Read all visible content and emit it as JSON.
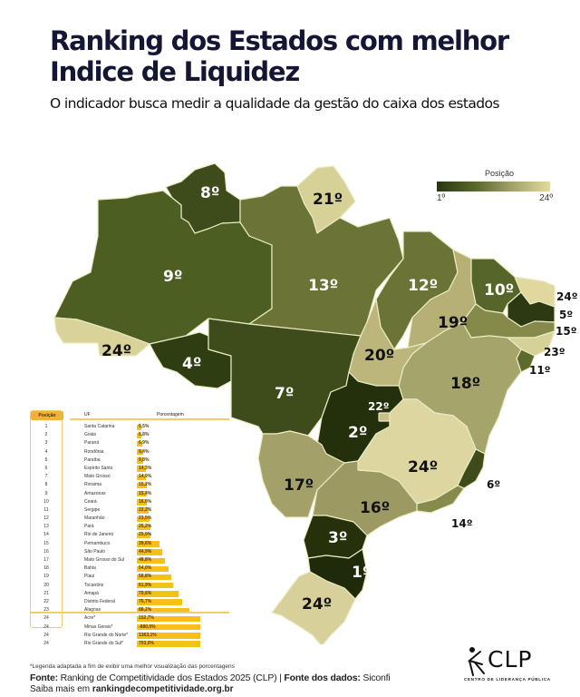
{
  "header": {
    "title": "Ranking dos Estados com melhor Indice de Liquidez",
    "subtitle": "O indicador busca medir a qualidade da gestão do caixa dos estados"
  },
  "legend": {
    "title": "Posição",
    "min_label": "1º",
    "max_label": "24º",
    "color_dark": "#2b3411",
    "color_light": "#e2dc9c"
  },
  "map": {
    "states": [
      {
        "uf": "RR",
        "name": "Roraima",
        "label": "8º"
      },
      {
        "uf": "AP",
        "name": "Amapá",
        "label": "21º"
      },
      {
        "uf": "AM",
        "name": "Amazonas",
        "label": "9º"
      },
      {
        "uf": "PA",
        "name": "Pará",
        "label": "13º"
      },
      {
        "uf": "MA",
        "name": "Maranhão",
        "label": "12º"
      },
      {
        "uf": "CE",
        "name": "Ceará",
        "label": "10º"
      },
      {
        "uf": "RN",
        "name": "Rio Grande do Norte",
        "label": "24º"
      },
      {
        "uf": "PB",
        "name": "Paraíba",
        "label": "5º"
      },
      {
        "uf": "PE",
        "name": "Pernambuco",
        "label": "15º"
      },
      {
        "uf": "AL",
        "name": "Alagoas",
        "label": "23º"
      },
      {
        "uf": "SE",
        "name": "Sergipe",
        "label": "11º"
      },
      {
        "uf": "PI",
        "name": "Piauí",
        "label": "19º"
      },
      {
        "uf": "AC",
        "name": "Acre",
        "label": "24º"
      },
      {
        "uf": "RO",
        "name": "Rondônia",
        "label": "4º"
      },
      {
        "uf": "MT",
        "name": "Mato Grosso",
        "label": "7º"
      },
      {
        "uf": "TO",
        "name": "Tocantins",
        "label": "20º"
      },
      {
        "uf": "BA",
        "name": "Bahia",
        "label": "18º"
      },
      {
        "uf": "GO",
        "name": "Goiás",
        "label": "2º"
      },
      {
        "uf": "DF",
        "name": "Distrito Federal",
        "label": "22º"
      },
      {
        "uf": "MG",
        "name": "Minas Gerais",
        "label": "24º"
      },
      {
        "uf": "ES",
        "name": "Espírito Santo",
        "label": "6º"
      },
      {
        "uf": "MS",
        "name": "Mato Grosso do Sul",
        "label": "17º"
      },
      {
        "uf": "SP",
        "name": "São Paulo",
        "label": "16º"
      },
      {
        "uf": "RJ",
        "name": "Rio de Janeiro",
        "label": "14º"
      },
      {
        "uf": "PR",
        "name": "Paraná",
        "label": "3º"
      },
      {
        "uf": "SC",
        "name": "Santa Catarina",
        "label": "1º"
      },
      {
        "uf": "RS",
        "name": "Rio Grande do Sul",
        "label": "24º"
      }
    ]
  },
  "table": {
    "headers": {
      "position": "Posição",
      "uf": "UF",
      "percentage": "Porcentagem"
    },
    "rows": [
      {
        "pos": "1",
        "uf": "Santa Catarina",
        "pct": "5,5%"
      },
      {
        "pos": "2",
        "uf": "Goiás",
        "pct": "5,8%"
      },
      {
        "pos": "3",
        "uf": "Paraná",
        "pct": "6,9%"
      },
      {
        "pos": "4",
        "uf": "Rondônia",
        "pct": "9,4%"
      },
      {
        "pos": "5",
        "uf": "Paraíba",
        "pct": "9,8%"
      },
      {
        "pos": "6",
        "uf": "Espírito Santo",
        "pct": "14,3%"
      },
      {
        "pos": "7",
        "uf": "Mato Grosso",
        "pct": "14,9%"
      },
      {
        "pos": "8",
        "uf": "Roraima",
        "pct": "15,2%"
      },
      {
        "pos": "9",
        "uf": "Amazonas",
        "pct": "15,4%"
      },
      {
        "pos": "10",
        "uf": "Ceará",
        "pct": "16,0%"
      },
      {
        "pos": "11",
        "uf": "Sergipe",
        "pct": "22,2%"
      },
      {
        "pos": "12",
        "uf": "Maranhão",
        "pct": "23,5%"
      },
      {
        "pos": "13",
        "uf": "Pará",
        "pct": "25,2%"
      },
      {
        "pos": "14",
        "uf": "Rio de Janeiro",
        "pct": "25,9%"
      },
      {
        "pos": "15",
        "uf": "Pernambuco",
        "pct": "39,6%"
      },
      {
        "pos": "16",
        "uf": "São Paulo",
        "pct": "44,9%"
      },
      {
        "pos": "17",
        "uf": "Mato Grosso do Sul",
        "pct": "48,8%"
      },
      {
        "pos": "18",
        "uf": "Bahia",
        "pct": "54,0%"
      },
      {
        "pos": "19",
        "uf": "Piauí",
        "pct": "58,8%"
      },
      {
        "pos": "20",
        "uf": "Tocantins",
        "pct": "61,9%"
      },
      {
        "pos": "21",
        "uf": "Amapá",
        "pct": "70,6%"
      },
      {
        "pos": "22",
        "uf": "Distrito Federal",
        "pct": "75,7%"
      },
      {
        "pos": "23",
        "uf": "Alagoas",
        "pct": "88,2%"
      },
      {
        "pos": "24",
        "uf": "Acre*",
        "pct": "152,7%"
      },
      {
        "pos": "24",
        "uf": "Minas Gerais*",
        "pct": "-880,0%"
      },
      {
        "pos": "24",
        "uf": "Rio Grande do Norte*",
        "pct": "1363,1%"
      },
      {
        "pos": "24",
        "uf": "Rio Grande do Sul*",
        "pct": "703,0%"
      }
    ]
  },
  "footer": {
    "footnote": "*Legenda adaptada a fim de exibir uma melhor visualização das porcentagens",
    "source_label": "Fonte:",
    "source_text": " Ranking de Competitividade dos Estados 2025 (CLP) | ",
    "data_source_label": "Fonte dos dados:",
    "data_source_text": " Siconfi",
    "more_prefix": "Saiba mais em ",
    "more_link": "rankingdecompetitividade.org.br"
  },
  "logo": {
    "name": "CLP",
    "subtitle": "CENTRO DE LIDERANÇA PÚBLICA"
  },
  "chart_data": {
    "type": "table",
    "title": "Ranking dos Estados com melhor Indice de Liquidez",
    "subtitle": "O indicador busca medir a qualidade da gestão do caixa dos estados",
    "columns": [
      "Posição",
      "UF",
      "Porcentagem"
    ],
    "categories": [
      "Santa Catarina",
      "Goiás",
      "Paraná",
      "Rondônia",
      "Paraíba",
      "Espírito Santo",
      "Mato Grosso",
      "Roraima",
      "Amazonas",
      "Ceará",
      "Sergipe",
      "Maranhão",
      "Pará",
      "Rio de Janeiro",
      "Pernambuco",
      "São Paulo",
      "Mato Grosso do Sul",
      "Bahia",
      "Piauí",
      "Tocantins",
      "Amapá",
      "Distrito Federal",
      "Alagoas",
      "Acre",
      "Minas Gerais",
      "Rio Grande do Norte",
      "Rio Grande do Sul"
    ],
    "positions": [
      1,
      2,
      3,
      4,
      5,
      6,
      7,
      8,
      9,
      10,
      11,
      12,
      13,
      14,
      15,
      16,
      17,
      18,
      19,
      20,
      21,
      22,
      23,
      24,
      24,
      24,
      24
    ],
    "values": [
      5.5,
      5.8,
      6.9,
      9.4,
      9.8,
      14.3,
      14.9,
      15.2,
      15.4,
      16.0,
      22.2,
      23.5,
      25.2,
      25.9,
      39.6,
      44.9,
      48.8,
      54.0,
      58.8,
      61.9,
      70.6,
      75.7,
      88.2,
      152.7,
      -880.0,
      1363.1,
      703.0
    ],
    "unit": "%",
    "legend": {
      "title": "Posição",
      "range": [
        "1º",
        "24º"
      ],
      "colors": [
        "#2b3411",
        "#e2dc9c"
      ]
    }
  }
}
